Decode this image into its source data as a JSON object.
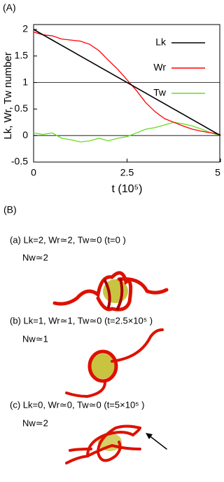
{
  "panel_a_label": "(A)",
  "chart_data": {
    "type": "line",
    "xlabel": "t (10⁵)",
    "ylabel": "Lk, Wr, Tw number",
    "x": [
      0,
      0.25,
      0.5,
      0.75,
      1,
      1.25,
      1.5,
      1.75,
      2,
      2.25,
      2.5,
      2.75,
      3,
      3.25,
      3.5,
      3.75,
      4,
      4.25,
      4.5,
      4.75,
      5
    ],
    "series": [
      {
        "name": "Lk",
        "color": "#000000",
        "values": [
          2,
          1.9,
          1.8,
          1.7,
          1.6,
          1.5,
          1.4,
          1.3,
          1.2,
          1.1,
          1,
          0.9,
          0.8,
          0.7,
          0.6,
          0.5,
          0.4,
          0.3,
          0.2,
          0.1,
          0
        ]
      },
      {
        "name": "Wr",
        "color": "#ff0000",
        "values": [
          1.95,
          1.9,
          1.88,
          1.82,
          1.8,
          1.78,
          1.72,
          1.6,
          1.42,
          1.25,
          1.05,
          0.85,
          0.62,
          0.45,
          0.32,
          0.25,
          0.18,
          0.12,
          0.08,
          0.05,
          0.02
        ]
      },
      {
        "name": "Tw",
        "color": "#66dd22",
        "values": [
          0.05,
          0.02,
          0.05,
          -0.05,
          -0.08,
          -0.12,
          -0.1,
          -0.05,
          -0.1,
          -0.05,
          -0.02,
          0.05,
          0.12,
          0.15,
          0.2,
          0.25,
          0.22,
          0.18,
          0.12,
          0.05,
          0
        ]
      }
    ],
    "hlines": [
      0,
      1
    ],
    "xlim": [
      0,
      5
    ],
    "xticks": [
      0,
      2.5,
      5
    ],
    "ylim": [
      -0.5,
      2
    ],
    "yticks": [
      -0.5,
      0,
      0.5,
      1,
      1.5,
      2
    ],
    "legend": "top-right"
  },
  "panel_b": {
    "label": "(B)",
    "items": [
      {
        "caption": "(a) Lk=2, Wr≃2, Tw≃0 (t=0 )",
        "nw": "Nw≃2"
      },
      {
        "caption": "(b) Lk=1, Wr≃1, Tw≃0 (t=2.5×10⁵ )",
        "nw": "Nw≃1"
      },
      {
        "caption": "(c) Lk=0, Wr≃0, Tw≃0 (t=5×10⁵ )",
        "nw": "Nw≃2"
      }
    ]
  }
}
